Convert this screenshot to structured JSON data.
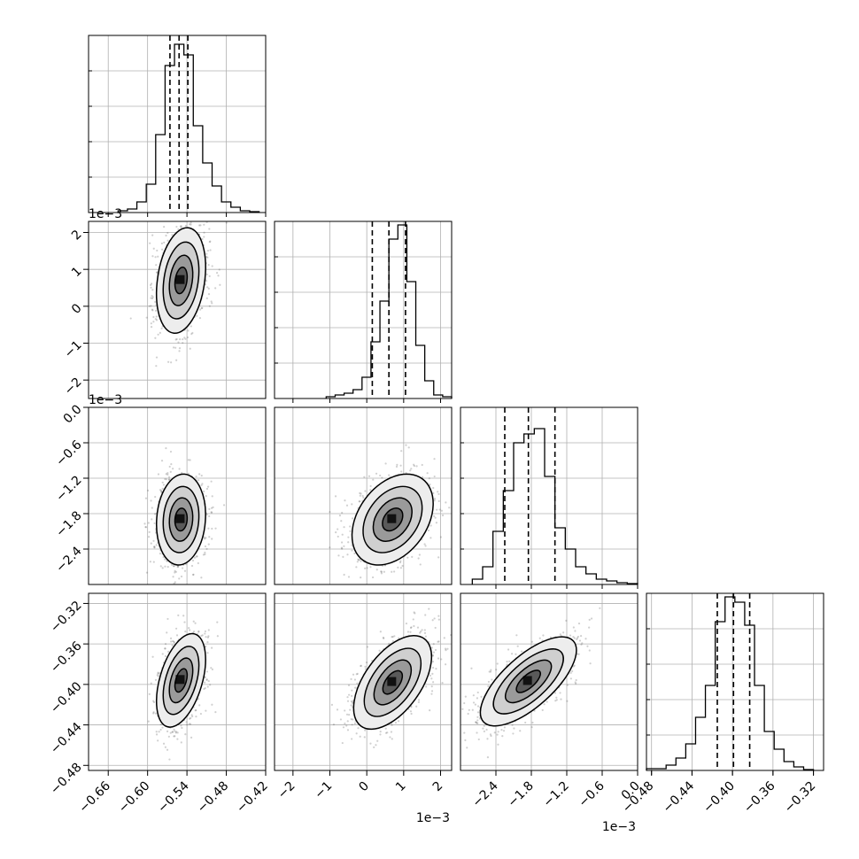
{
  "chart_data": {
    "type": "corner",
    "n_params": 4,
    "params": [
      {
        "label": "",
        "range": [
          -0.69,
          -0.42
        ],
        "ticks": [
          -0.66,
          -0.6,
          -0.54,
          -0.48,
          -0.42
        ],
        "tick_labels": [
          "−0.66",
          "−0.60",
          "−0.54",
          "−0.48",
          "−0.42"
        ],
        "offset": "",
        "quantiles": [
          -0.5659,
          -0.552,
          -0.5386
        ],
        "hist": [
          0.01,
          0.02,
          0.06,
          0.16,
          0.44,
          0.83,
          0.95,
          0.89,
          0.49,
          0.28,
          0.15,
          0.06,
          0.03,
          0.01,
          0.005
        ],
        "hist_range": [
          -0.645,
          -0.43
        ]
      },
      {
        "label": "",
        "range": [
          -2.5,
          2.3
        ],
        "ticks": [
          -2,
          -1,
          0,
          1,
          2
        ],
        "tick_labels": [
          "−2",
          "−1",
          "0",
          "1",
          "2"
        ],
        "offset": "1e−3",
        "quantiles": [
          0.15,
          0.6,
          1.05
        ],
        "hist": [
          0.01,
          0.02,
          0.03,
          0.05,
          0.12,
          0.32,
          0.55,
          0.9,
          0.98,
          0.66,
          0.3,
          0.1,
          0.02,
          0.01
        ],
        "hist_range": [
          -1.1,
          2.3
        ]
      },
      {
        "label": "",
        "range": [
          -3.0,
          0.0
        ],
        "ticks": [
          -2.4,
          -1.8,
          -1.2,
          -0.6,
          0.0
        ],
        "tick_labels": [
          "−2.4",
          "−1.8",
          "−1.2",
          "−0.6",
          "0.0"
        ],
        "offset": "1e−3",
        "quantiles": [
          -2.25,
          -1.85,
          -1.4
        ],
        "hist": [
          0.03,
          0.1,
          0.3,
          0.53,
          0.8,
          0.85,
          0.88,
          0.61,
          0.32,
          0.2,
          0.1,
          0.06,
          0.03,
          0.02,
          0.01,
          0.005
        ],
        "hist_range": [
          -2.8,
          0.0
        ]
      },
      {
        "label": "",
        "range": [
          -0.485,
          -0.31
        ],
        "ticks": [
          -0.48,
          -0.44,
          -0.4,
          -0.36,
          -0.32
        ],
        "tick_labels": [
          "−0.48",
          "−0.44",
          "−0.40",
          "−0.36",
          "−0.32"
        ],
        "offset": "",
        "quantiles": [
          -0.415,
          -0.399,
          -0.383
        ],
        "hist": [
          0.01,
          0.01,
          0.03,
          0.07,
          0.15,
          0.3,
          0.48,
          0.84,
          0.98,
          0.95,
          0.82,
          0.48,
          0.22,
          0.12,
          0.05,
          0.02,
          0.005
        ],
        "hist_range": [
          -0.485,
          -0.32
        ]
      }
    ],
    "blobs": [
      {
        "row": 1,
        "col": 0,
        "center": [
          -0.549,
          0.7
        ],
        "sigma": [
          0.017,
          0.65
        ],
        "corr": 0.25
      },
      {
        "row": 2,
        "col": 0,
        "center": [
          -0.549,
          -1.9
        ],
        "sigma": [
          0.017,
          0.35
        ],
        "corr": 0.1
      },
      {
        "row": 2,
        "col": 1,
        "center": [
          0.7,
          -1.9
        ],
        "sigma": [
          0.5,
          0.35
        ],
        "corr": 0.35
      },
      {
        "row": 3,
        "col": 0,
        "center": [
          -0.549,
          -0.396
        ],
        "sigma": [
          0.017,
          0.021
        ],
        "corr": 0.45
      },
      {
        "row": 3,
        "col": 1,
        "center": [
          0.7,
          -0.398
        ],
        "sigma": [
          0.48,
          0.021
        ],
        "corr": 0.55
      },
      {
        "row": 3,
        "col": 2,
        "center": [
          -1.85,
          -0.397
        ],
        "sigma": [
          0.37,
          0.02
        ],
        "corr": 0.7
      }
    ],
    "grid": true,
    "colors": {
      "axes": "#000000",
      "grid": "#b0b0b0",
      "contour": "#000000",
      "scatter": "#555555",
      "hist": "#000000"
    }
  }
}
